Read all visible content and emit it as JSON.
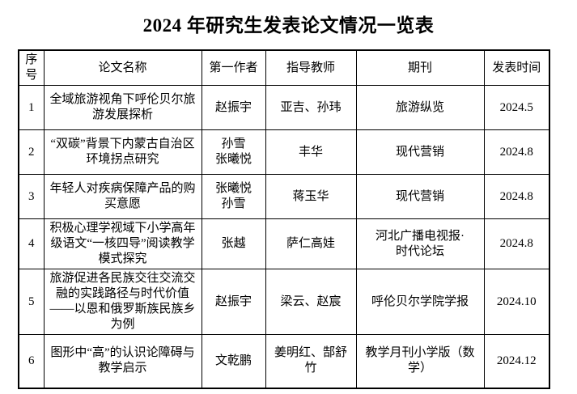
{
  "title": "2024 年研究生发表论文情况一览表",
  "colors": {
    "text": "#000000",
    "border": "#000000",
    "background": "#ffffff"
  },
  "table": {
    "headers": [
      "序号",
      "论文名称",
      "第一作者",
      "指导教师",
      "期刊",
      "发表时间"
    ],
    "rows": [
      {
        "no": "1",
        "paper": "全域旅游视角下呼伦贝尔旅游发展探析",
        "author": "赵振宇",
        "advisor": "亚吉、孙玮",
        "journal": "旅游纵览",
        "date": "2024.5"
      },
      {
        "no": "2",
        "paper": "“双碳”背景下内蒙古自治区环境拐点研究",
        "author": "孙雪\n张曦悦",
        "advisor": "丰华",
        "journal": "现代营销",
        "date": "2024.8"
      },
      {
        "no": "3",
        "paper": "年轻人对疾病保障产品的购买意愿",
        "author": "张曦悦\n孙雪",
        "advisor": "蒋玉华",
        "journal": "现代营销",
        "date": "2024.8"
      },
      {
        "no": "4",
        "paper": "积极心理学视域下小学高年级语文“一核四导”阅读教学模式探究",
        "author": "张越",
        "advisor": "萨仁高娃",
        "journal": "河北广播电视报·\n时代论坛",
        "date": "2024.8"
      },
      {
        "no": "5",
        "paper": "旅游促进各民族交往交流交融的实践路径与时代价值——以恩和俄罗斯族民族乡为例",
        "author": "赵振宇",
        "advisor": "梁云、赵宸",
        "journal": "呼伦贝尔学院学报",
        "date": "2024.10"
      },
      {
        "no": "6",
        "paper": "图形中“高”的认识论障碍与教学启示",
        "author": "文乾鹏",
        "advisor": "姜明红、郜舒竹",
        "journal": "教学月刊小学版（数学）",
        "date": "2024.12"
      }
    ]
  }
}
